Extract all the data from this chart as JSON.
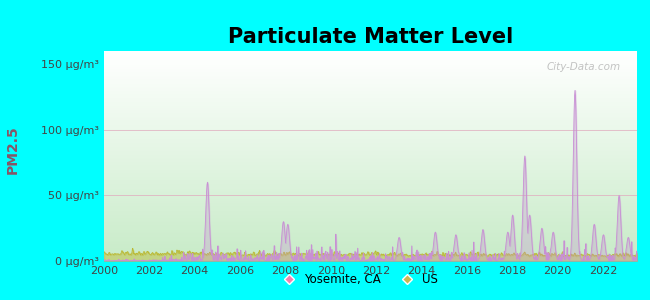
{
  "title": "Particulate Matter Level",
  "ylabel": "PM2.5",
  "ylim": [
    0,
    160
  ],
  "yticks": [
    0,
    50,
    100,
    150
  ],
  "ytick_labels": [
    "0 μg/m³",
    "50 μg/m³",
    "100 μg/m³",
    "150 μg/m³"
  ],
  "xlim": [
    2000,
    2023.5
  ],
  "xticks": [
    2000,
    2002,
    2004,
    2006,
    2008,
    2010,
    2012,
    2014,
    2016,
    2018,
    2020,
    2022
  ],
  "background_outer": "#00FFFF",
  "plot_bg_top": "#f0faf0",
  "plot_bg_bottom": "#c8e8b8",
  "yosemite_color": "#c88fd4",
  "us_color": "#bbb830",
  "legend_yosemite_color": "#f080b0",
  "legend_us_color": "#c8b850",
  "watermark": "City-Data.com",
  "title_fontsize": 15,
  "label_fontsize": 9,
  "tick_fontsize": 8
}
